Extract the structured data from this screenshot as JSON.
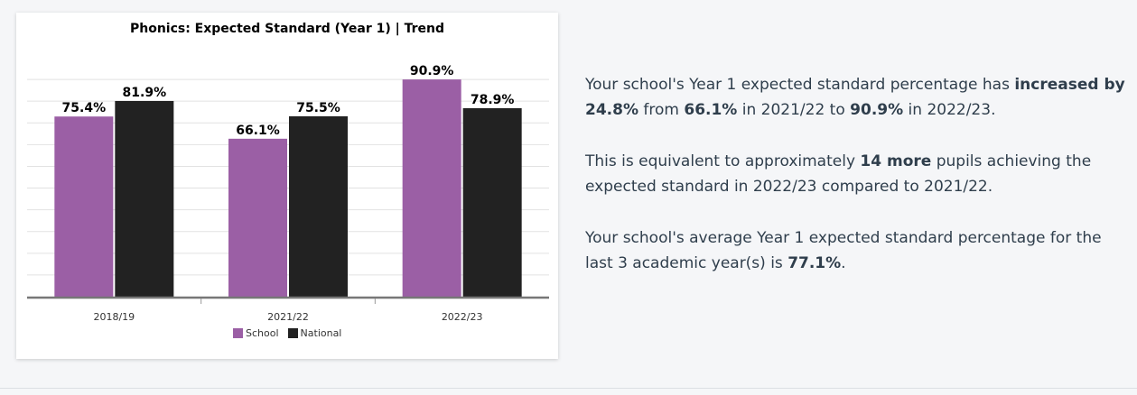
{
  "chart_data": {
    "type": "bar",
    "title": "Phonics: Expected Standard (Year 1) | Trend",
    "categories": [
      "2018/19",
      "2021/22",
      "2022/23"
    ],
    "series": [
      {
        "name": "School",
        "color": "#9b5fa5",
        "values": [
          75.4,
          66.1,
          90.9
        ],
        "labels": [
          "75.4%",
          "66.1%",
          "90.9%"
        ]
      },
      {
        "name": "National",
        "color": "#222222",
        "values": [
          81.9,
          75.5,
          78.9
        ],
        "labels": [
          "81.9%",
          "75.5%",
          "78.9%"
        ]
      }
    ],
    "xlabel": "",
    "ylabel": "",
    "ylim": [
      0,
      100
    ],
    "grid": true,
    "legend_position": "bottom"
  },
  "summary": {
    "p1": {
      "t1": "Your school's Year 1 expected standard percentage has ",
      "b1": "increased by 24.8%",
      "t2": " from ",
      "b2": "66.1%",
      "t3": " in 2021/22 to ",
      "b3": "90.9%",
      "t4": " in 2022/23."
    },
    "p2": {
      "t1": "This is equivalent to approximately ",
      "b1": "14 more",
      "t2": " pupils achieving the expected standard in 2022/23 compared to 2021/22."
    },
    "p3": {
      "t1": "Your school's average Year 1 expected standard percentage for the last 3 academic year(s) is ",
      "b1": "77.1%",
      "t2": "."
    }
  }
}
